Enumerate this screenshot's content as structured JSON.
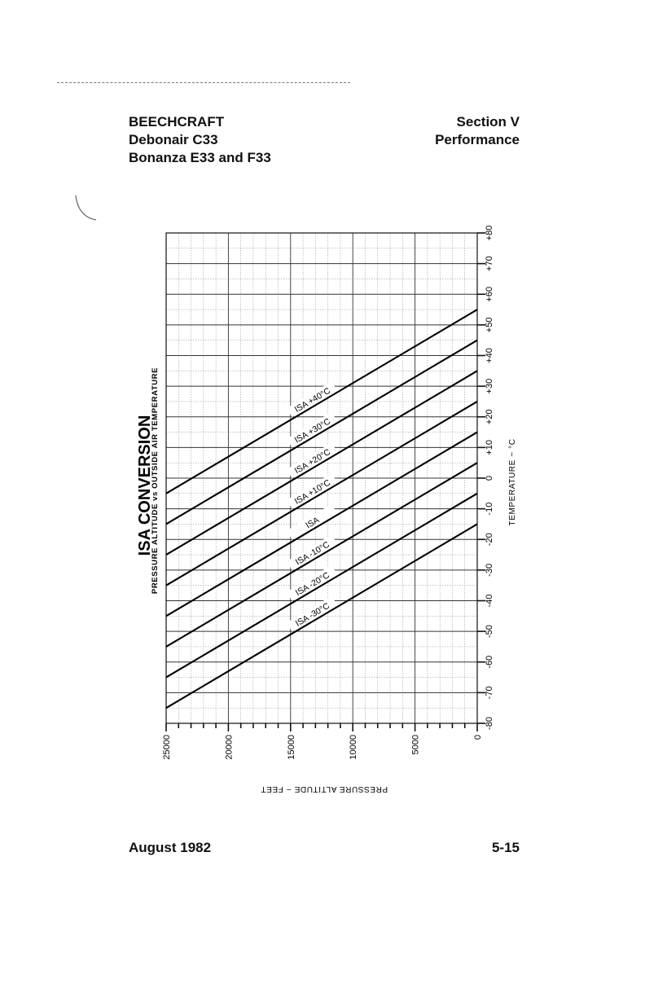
{
  "header": {
    "left": [
      "BEECHCRAFT",
      "Debonair C33",
      "Bonanza E33 and F33"
    ],
    "right": [
      "Section V",
      "Performance"
    ]
  },
  "footer": {
    "left": "August 1982",
    "right": "5-15"
  },
  "chart_data": {
    "type": "line",
    "title": "ISA CONVERSION",
    "subtitle": "PRESSURE ALTITUDE vs OUTSIDE AIR TEMPERATURE",
    "xlabel": "PRESSURE ALTITUDE ~ FEET",
    "ylabel": "TEMPERATURE ~ °C",
    "xlim": [
      0,
      25000
    ],
    "ylim": [
      -80,
      80
    ],
    "x_ticks": [
      "0",
      "5000",
      "10000",
      "15000",
      "20000",
      "25000"
    ],
    "y_ticks": [
      "-80",
      "-70",
      "-60",
      "-50",
      "-40",
      "-30",
      "-20",
      "-10",
      "0",
      "+10",
      "+20",
      "+30",
      "+40",
      "+50",
      "+60",
      "+70",
      "+80"
    ],
    "x": [
      0,
      25000
    ],
    "grid": true,
    "series": [
      {
        "name": "ISA +40°C",
        "values": [
          55,
          -5
        ]
      },
      {
        "name": "ISA +30°C",
        "values": [
          45,
          -15
        ]
      },
      {
        "name": "ISA +20°C",
        "values": [
          35,
          -25
        ]
      },
      {
        "name": "ISA +10°C",
        "values": [
          25,
          -35
        ]
      },
      {
        "name": "ISA",
        "values": [
          15,
          -45
        ]
      },
      {
        "name": "ISA -10°C",
        "values": [
          5,
          -55
        ]
      },
      {
        "name": "ISA -20°C",
        "values": [
          -5,
          -65
        ]
      },
      {
        "name": "ISA -30°C",
        "values": [
          -15,
          -75
        ]
      }
    ]
  }
}
